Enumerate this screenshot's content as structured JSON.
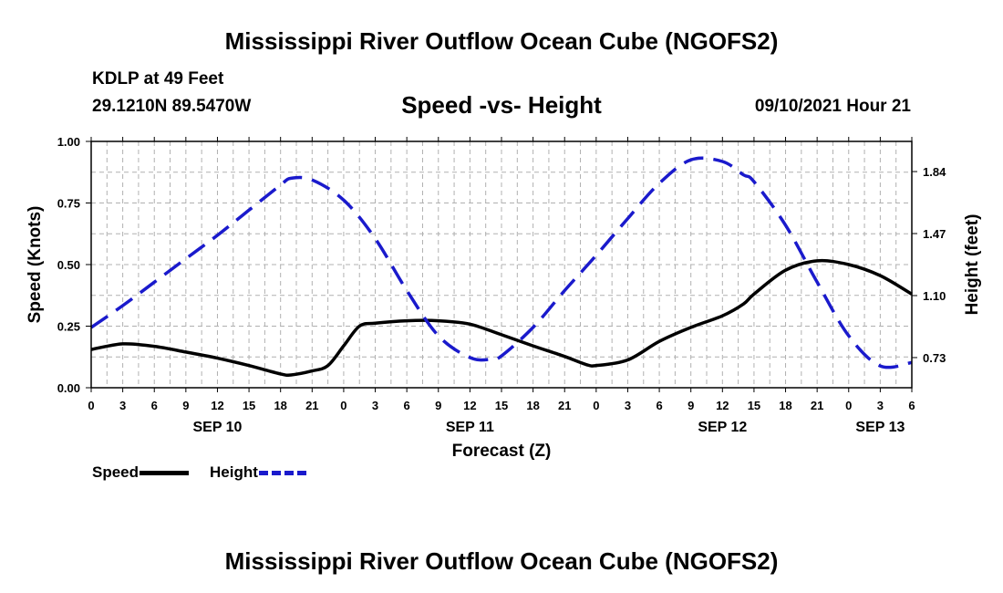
{
  "header": {
    "title": "Mississippi River Outflow Ocean Cube (NGOFS2)",
    "station": "KDLP at 49 Feet",
    "coords": "29.1210N  89.5470W",
    "datetime": "09/10/2021 Hour 21"
  },
  "footer": {
    "title": "Mississippi River Outflow Ocean Cube (NGOFS2)"
  },
  "legend": {
    "speed_label": "Speed",
    "height_label": "Height"
  },
  "colors": {
    "speed": "#000000",
    "height": "#1a1acc",
    "grid": "#b0b0b0"
  },
  "chart_data": {
    "type": "line",
    "title": "Speed -vs- Height",
    "xlabel": "Forecast (Z)",
    "ylabel": "Speed (Knots)",
    "y2label": "Height (feet)",
    "grid": true,
    "legend": "bottom-left",
    "xlim": [
      0,
      78
    ],
    "ylim": [
      0,
      1
    ],
    "y2lim": [
      0.55,
      2.02
    ],
    "x_ticks": [
      0,
      3,
      6,
      9,
      12,
      15,
      18,
      21,
      24,
      27,
      30,
      33,
      36,
      39,
      42,
      45,
      48,
      51,
      54,
      57,
      60,
      63,
      66,
      69,
      72,
      75,
      78
    ],
    "x_tick_labels": [
      "0",
      "3",
      "6",
      "9",
      "12",
      "15",
      "18",
      "21",
      "0",
      "3",
      "6",
      "9",
      "12",
      "15",
      "18",
      "21",
      "0",
      "3",
      "6",
      "9",
      "12",
      "15",
      "18",
      "21",
      "0",
      "3",
      "6"
    ],
    "date_labels": [
      {
        "x": 12,
        "label": "SEP 10"
      },
      {
        "x": 36,
        "label": "SEP 11"
      },
      {
        "x": 60,
        "label": "SEP 12"
      },
      {
        "x": 75,
        "label": "SEP 13"
      }
    ],
    "y_ticks": [
      0.0,
      0.25,
      0.5,
      0.75,
      1.0
    ],
    "y_tick_labels": [
      "0.00",
      "0.25",
      "0.50",
      "0.75",
      "1.00"
    ],
    "y2_ticks": [
      0.73,
      1.1,
      1.47,
      1.84
    ],
    "y2_tick_labels": [
      "0.73",
      "1.10",
      "1.47",
      "1.84"
    ],
    "series": [
      {
        "name": "Speed",
        "axis": "left",
        "style": "solid",
        "x": [
          0,
          3,
          6,
          9,
          12,
          15,
          18,
          19,
          21,
          22.5,
          24,
          25.5,
          27,
          30,
          33,
          36,
          39,
          42,
          45,
          47,
          48,
          51,
          54,
          57,
          60,
          62,
          63,
          66,
          69,
          72,
          75,
          78
        ],
        "values": [
          0.155,
          0.178,
          0.168,
          0.145,
          0.12,
          0.09,
          0.056,
          0.052,
          0.068,
          0.09,
          0.17,
          0.25,
          0.262,
          0.272,
          0.272,
          0.258,
          0.215,
          0.17,
          0.127,
          0.095,
          0.09,
          0.113,
          0.188,
          0.245,
          0.292,
          0.34,
          0.38,
          0.477,
          0.515,
          0.5,
          0.455,
          0.38
        ]
      },
      {
        "name": "Height",
        "axis": "right",
        "style": "dashed",
        "x": [
          0,
          3,
          6,
          9,
          12,
          15,
          18,
          19,
          21,
          24,
          27,
          30,
          33,
          36,
          38,
          39,
          42,
          45,
          48,
          51,
          54,
          57,
          60,
          62,
          63,
          66,
          69,
          72,
          75,
          78
        ],
        "values": [
          0.91,
          1.04,
          1.18,
          1.32,
          1.46,
          1.61,
          1.76,
          1.8,
          1.79,
          1.67,
          1.44,
          1.13,
          0.86,
          0.73,
          0.72,
          0.74,
          0.91,
          1.13,
          1.34,
          1.56,
          1.77,
          1.91,
          1.9,
          1.82,
          1.78,
          1.52,
          1.18,
          0.86,
          0.68,
          0.7
        ]
      }
    ]
  }
}
